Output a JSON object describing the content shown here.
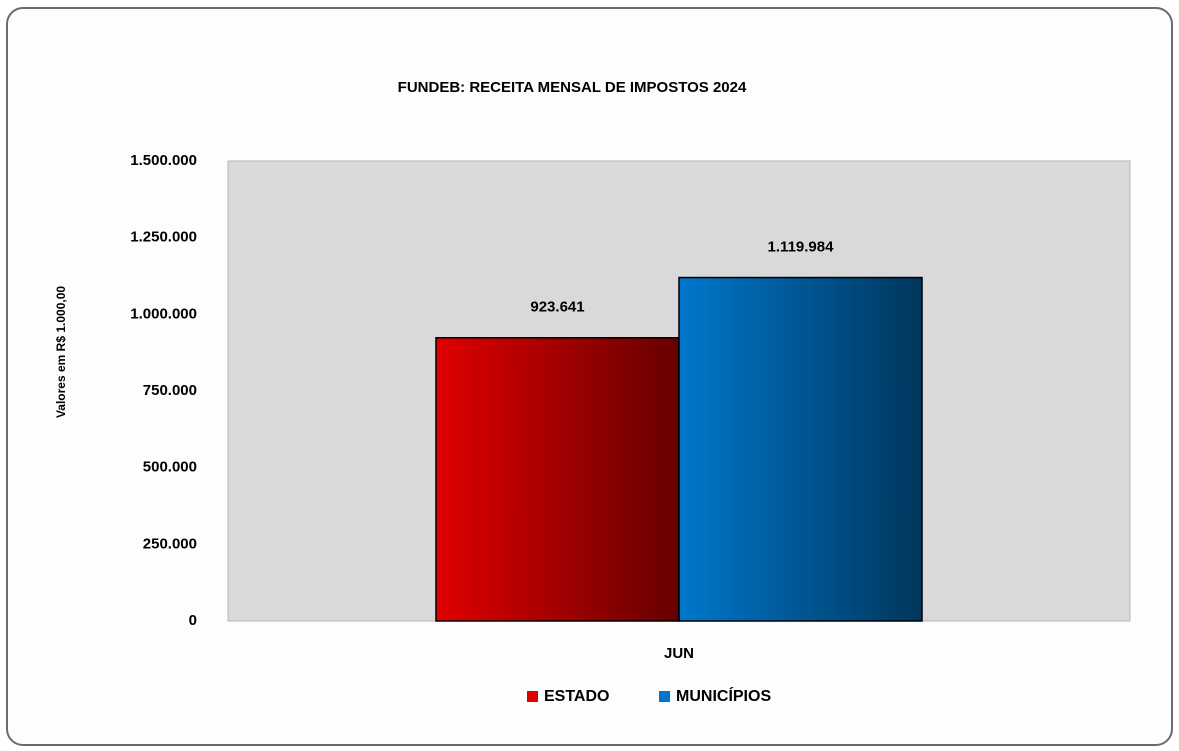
{
  "chart_data": {
    "type": "bar",
    "title": "FUNDEB: RECEITA MENSAL DE IMPOSTOS 2024",
    "y_label": "Valores em R$ 1.000,00",
    "categories": [
      "JUN"
    ],
    "series": [
      {
        "name": "ESTADO",
        "color": "#e00000",
        "values": [
          923641
        ],
        "value_labels": [
          "923.641"
        ]
      },
      {
        "name": "MUNICÍPIOS",
        "color": "#0077cc",
        "values": [
          1119984
        ],
        "value_labels": [
          "1.119.984"
        ]
      }
    ],
    "ylim": [
      0,
      1500000
    ],
    "yticks": [
      0,
      {
        "value": 250000,
        "label": "250.000"
      },
      {
        "value": 500000,
        "label": "500.000"
      },
      {
        "value": 750000,
        "label": "750.000"
      },
      {
        "value": 1000000,
        "label": "1.000.000"
      },
      {
        "value": 1250000,
        "label": "1.250.000"
      },
      {
        "value": 1500000,
        "label": "1.500.000"
      }
    ],
    "grid": false,
    "legend": "bottom"
  }
}
